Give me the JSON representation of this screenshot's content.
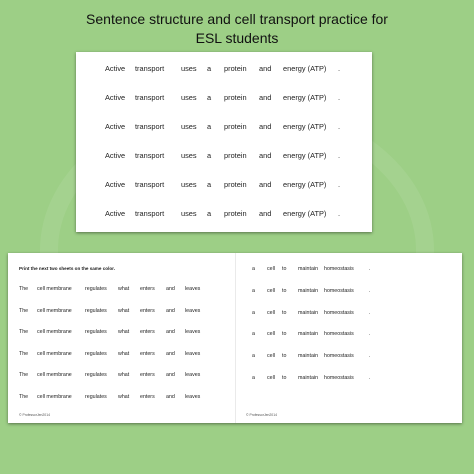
{
  "title": {
    "line1": "Sentence structure and cell transport practice for",
    "line2": "ESL students"
  },
  "sheet1": {
    "words": [
      "Active",
      "transport",
      "uses",
      "a",
      "protein",
      "and",
      "energy (ATP)",
      "."
    ],
    "row_count": 6
  },
  "sheet2": {
    "instruction": "Print the next two sheets on the same color.",
    "left_words": [
      "The",
      "cell membrane",
      "regulates",
      "what",
      "enters",
      "and",
      "leaves"
    ],
    "right_words": [
      "a",
      "cell",
      "to",
      "maintain",
      "homeostasis",
      "."
    ],
    "row_count": 6,
    "copyright": "© ProfessorJen2014"
  }
}
